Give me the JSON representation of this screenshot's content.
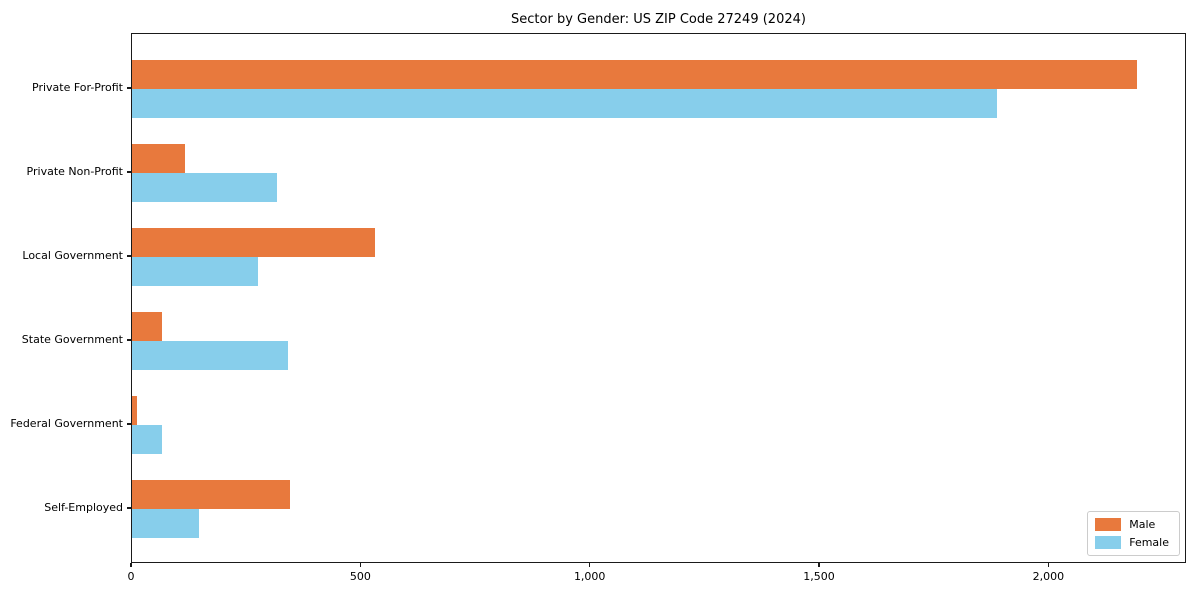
{
  "chart_data": {
    "type": "bar",
    "orientation": "horizontal",
    "title": "Sector by Gender: US ZIP Code 27249 (2024)",
    "categories": [
      "Private For-Profit",
      "Private Non-Profit",
      "Local Government",
      "State Government",
      "Federal Government",
      "Self-Employed"
    ],
    "series": [
      {
        "name": "Male",
        "color": "#E8793D",
        "values": [
          2190,
          115,
          530,
          65,
          10,
          345
        ]
      },
      {
        "name": "Female",
        "color": "#87CEEB",
        "values": [
          1885,
          315,
          275,
          340,
          65,
          145
        ]
      }
    ],
    "xlabel": "",
    "ylabel": "",
    "xlim": [
      0,
      2300
    ],
    "xticks": [
      0,
      500,
      1000,
      1500,
      2000
    ],
    "xtick_labels": [
      "0",
      "500",
      "1,000",
      "1,500",
      "2,000"
    ],
    "legend_position": "lower right",
    "grid": false,
    "background_color": "#ffffff",
    "spine_color": "#1a1a1a"
  }
}
